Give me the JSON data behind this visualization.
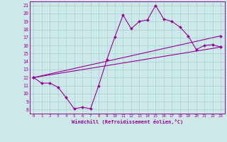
{
  "xlabel": "Windchill (Refroidissement éolien,°C)",
  "bg_color": "#cce8e8",
  "grid_color": "#aad4d4",
  "line_color": "#990099",
  "xlim": [
    -0.5,
    23.5
  ],
  "ylim": [
    7.5,
    21.5
  ],
  "xticks": [
    0,
    1,
    2,
    3,
    4,
    5,
    6,
    7,
    8,
    9,
    10,
    11,
    12,
    13,
    14,
    15,
    16,
    17,
    18,
    19,
    20,
    21,
    22,
    23
  ],
  "yticks": [
    8,
    9,
    10,
    11,
    12,
    13,
    14,
    15,
    16,
    17,
    18,
    19,
    20,
    21
  ],
  "line1_x": [
    0,
    1,
    2,
    3,
    4,
    5,
    6,
    7,
    8,
    9,
    10,
    11,
    12,
    13,
    14,
    15,
    16,
    17,
    18,
    19,
    20,
    21,
    22,
    23
  ],
  "line1_y": [
    12,
    11.3,
    11.3,
    10.8,
    9.5,
    8.1,
    8.3,
    8.1,
    11.0,
    14.2,
    17.1,
    19.8,
    18.1,
    19.0,
    19.2,
    21.0,
    19.3,
    19.0,
    18.3,
    17.2,
    15.5,
    16.0,
    16.1,
    15.8
  ],
  "line2_x": [
    0,
    23
  ],
  "line2_y": [
    12,
    17.2
  ],
  "line3_x": [
    0,
    23
  ],
  "line3_y": [
    12,
    15.8
  ]
}
